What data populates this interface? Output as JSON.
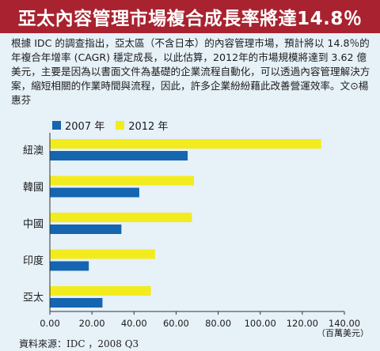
{
  "title": "亞太內容管理市場複合成長率將達14.8％",
  "description": "根據 IDC 的調查指出，亞太區（不含日本）的內容管理市場，預計將以 14.8％的年複合年增率 (CAGR) 穩定成長，以此估算，2012年的市場規模將達到 3.62 億美元，主要是因為以書面文件為基礎的企業流程自動化，可以透過內容管理解決方案，縮短相關的作業時間與流程，因此，許多企業紛紛藉此改善營運效率。文⊙楊惠芬",
  "source": "資料來源：IDC ，2008 Q3",
  "colors": {
    "banner": "#a8232f",
    "series_2007": "#1565b0",
    "series_2012": "#f2ec1e",
    "background": "#e6f1f8"
  },
  "chart_data": {
    "type": "bar",
    "orientation": "horizontal",
    "categories": [
      "紐澳",
      "韓國",
      "中國",
      "印度",
      "亞太"
    ],
    "series": [
      {
        "name": "2007 年",
        "values": [
          65.5,
          42.5,
          34.0,
          18.5,
          25.0
        ]
      },
      {
        "name": "2012 年",
        "values": [
          129.0,
          68.5,
          67.5,
          50.0,
          48.0
        ]
      }
    ],
    "xlim": [
      0,
      140
    ],
    "xticks": [
      "0.00",
      "20.00",
      "40.00",
      "60.00",
      "80.00",
      "100.00",
      "120.00",
      "140.00"
    ],
    "unit_label": "（百萬美元）",
    "legend_position": "top-left",
    "grid": false
  }
}
